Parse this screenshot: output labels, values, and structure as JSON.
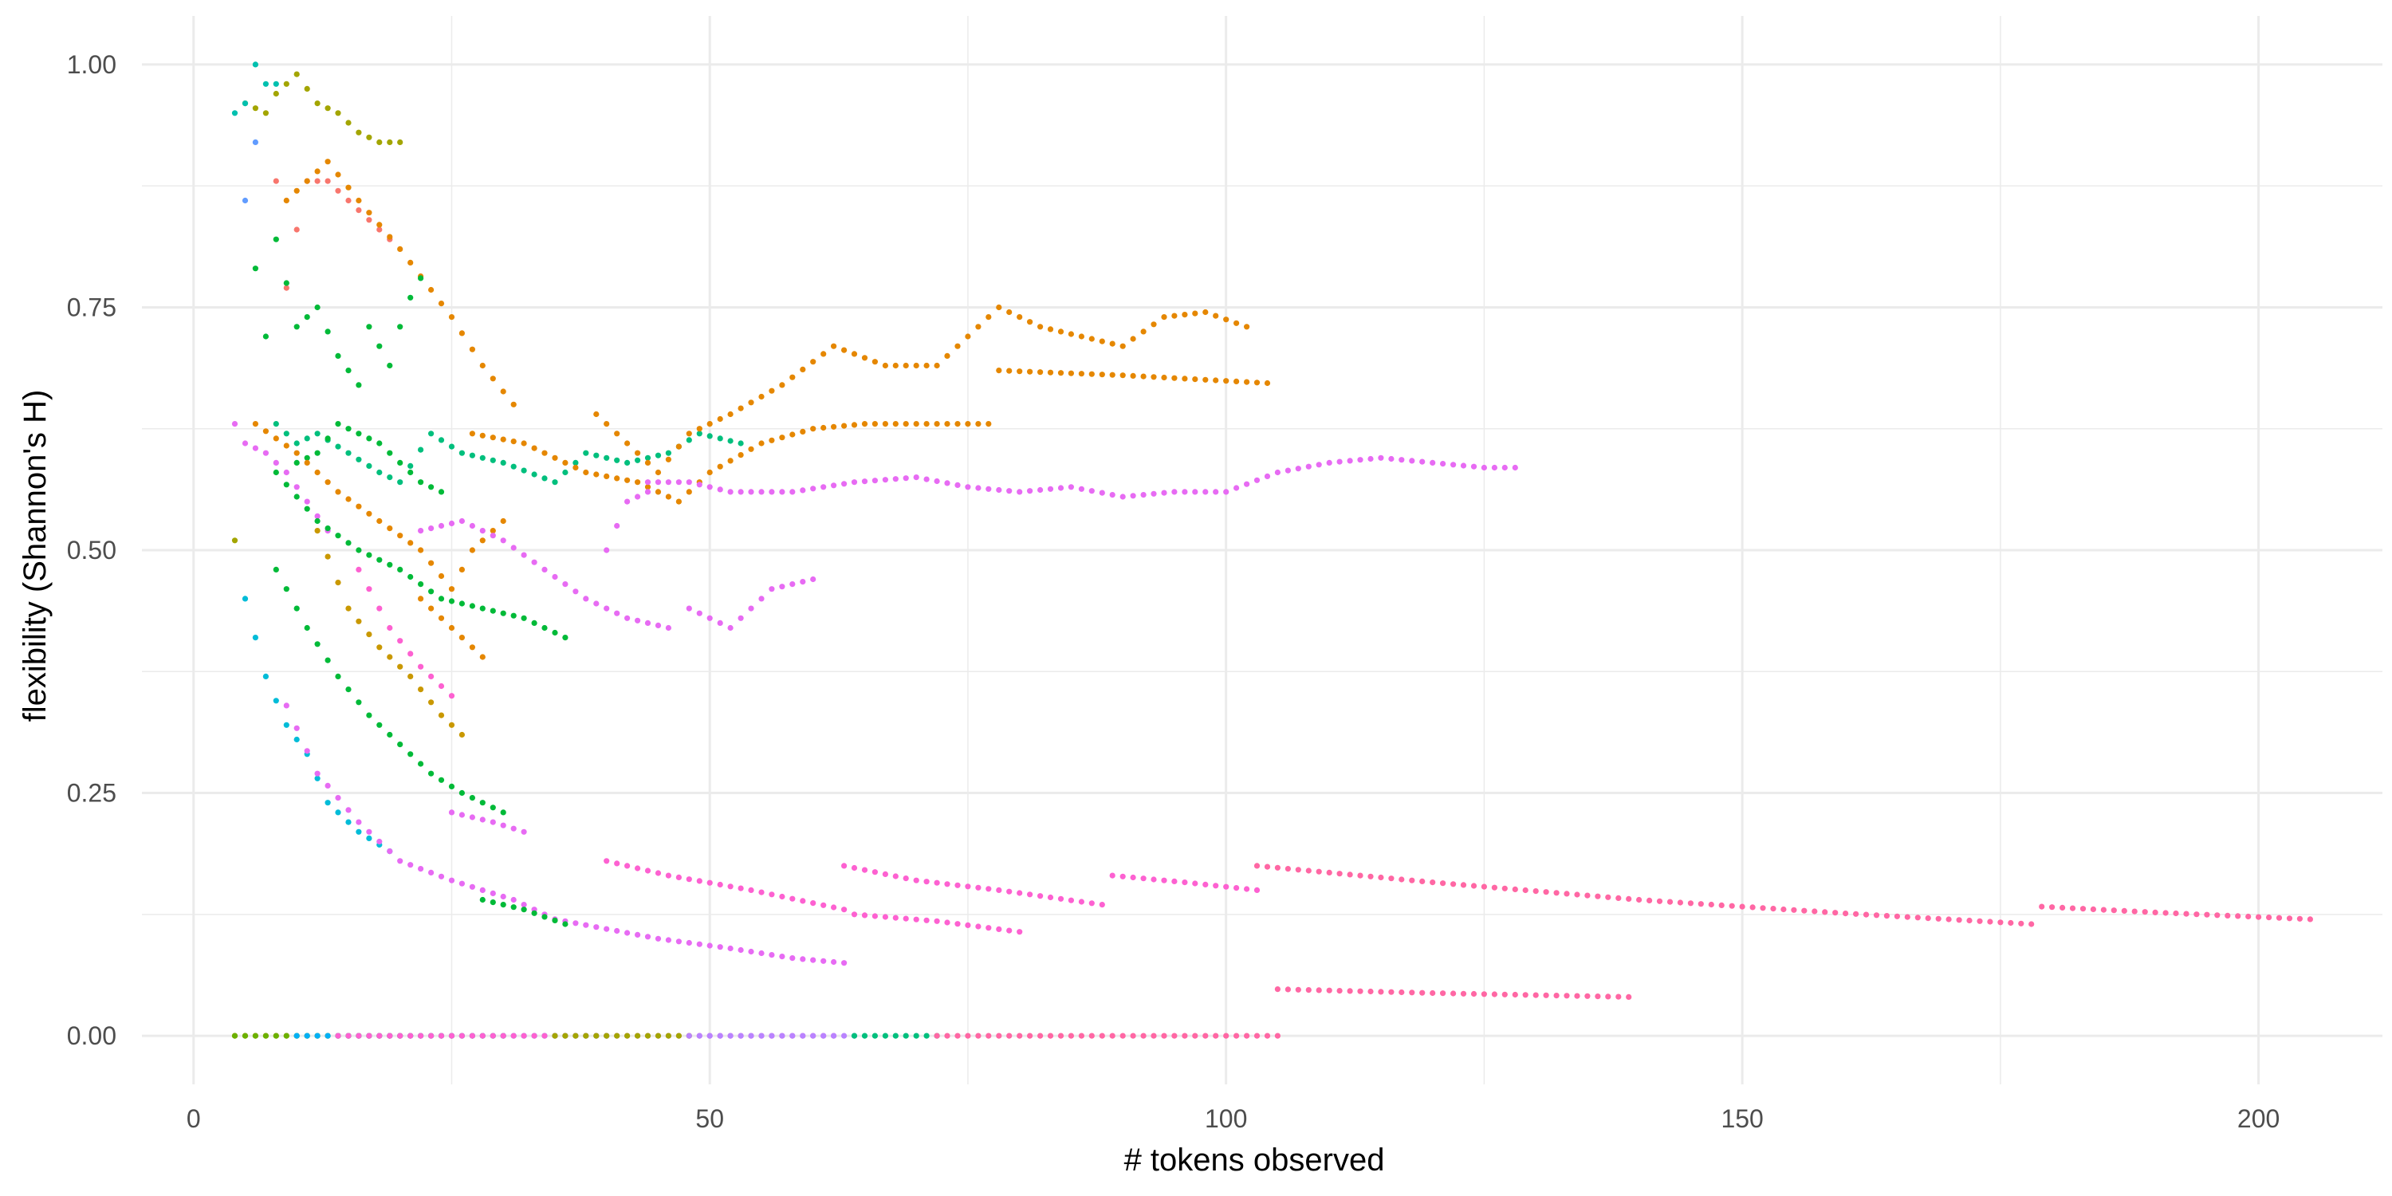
{
  "chart_data": {
    "type": "scatter",
    "title": "",
    "xlabel": "# tokens observed",
    "ylabel": "flexibility (Shannon's H)",
    "xlim": [
      -5,
      212
    ],
    "ylim": [
      -0.05,
      1.05
    ],
    "x_ticks": [
      0,
      50,
      100,
      150,
      200
    ],
    "x_tick_labels": [
      "0",
      "50",
      "100",
      "150",
      "200"
    ],
    "y_ticks": [
      0,
      0.25,
      0.5,
      0.75,
      1.0
    ],
    "y_tick_labels": [
      "0.00",
      "0.25",
      "0.50",
      "0.75",
      "1.00"
    ],
    "grid": true,
    "legend": "none",
    "palette": [
      "#F8766D",
      "#E58700",
      "#C99800",
      "#A3A500",
      "#6BB100",
      "#00BA38",
      "#00BF7D",
      "#00C0AF",
      "#00BCD8",
      "#00B0F6",
      "#619CFF",
      "#B983FF",
      "#E76BF3",
      "#FD61D1",
      "#FF67A4"
    ],
    "series": [
      {
        "color": "#E58700",
        "curves": [
          [
            4,
            0.0
          ],
          [
            20,
            0.0
          ]
        ]
      },
      {
        "color": "#6BB100",
        "curves": [
          [
            4,
            0.0
          ],
          [
            30,
            0.0
          ]
        ]
      },
      {
        "color": "#00B0F6",
        "curves": [
          [
            10,
            0.0
          ],
          [
            40,
            0.0
          ]
        ]
      },
      {
        "color": "#FD61D1",
        "curves": [
          [
            14,
            0.0
          ],
          [
            62,
            0.0
          ]
        ]
      },
      {
        "color": "#A3A500",
        "curves": [
          [
            35,
            0.0
          ],
          [
            48,
            0.0
          ]
        ]
      },
      {
        "color": "#B983FF",
        "curves": [
          [
            48,
            0.0
          ],
          [
            64,
            0.0
          ]
        ]
      },
      {
        "color": "#00BF7D",
        "curves": [
          [
            64,
            0.0
          ],
          [
            72,
            0.0
          ]
        ]
      },
      {
        "color": "#FF67A4",
        "curves": [
          [
            72,
            0.0
          ],
          [
            105,
            0.0
          ]
        ]
      },
      {
        "color": "#A3A500",
        "curves": [
          [
            4,
            0.51
          ],
          [
            5,
            0.96
          ],
          [
            7,
            0.95
          ],
          [
            8,
            0.97
          ],
          [
            10,
            0.99
          ],
          [
            12,
            0.96
          ],
          [
            14,
            0.95
          ],
          [
            16,
            0.93
          ],
          [
            18,
            0.92
          ],
          [
            20,
            0.92
          ]
        ]
      },
      {
        "color": "#00C0AF",
        "curves": [
          [
            4,
            0.95
          ],
          [
            5,
            0.96
          ],
          [
            6,
            1.0
          ],
          [
            7,
            0.98
          ],
          [
            8,
            0.98
          ]
        ]
      },
      {
        "color": "#619CFF",
        "curves": [
          [
            5,
            0.86
          ],
          [
            6,
            0.92
          ]
        ]
      },
      {
        "color": "#F8766D",
        "curves": [
          [
            8,
            0.88
          ],
          [
            9,
            0.77
          ],
          [
            10,
            0.83
          ],
          [
            11,
            0.88
          ],
          [
            13,
            0.88
          ],
          [
            15,
            0.86
          ],
          [
            17,
            0.84
          ],
          [
            19,
            0.82
          ]
        ]
      },
      {
        "color": "#E58700",
        "curves": [
          [
            9,
            0.86
          ],
          [
            13,
            0.9
          ],
          [
            16,
            0.86
          ],
          [
            20,
            0.81
          ],
          [
            25,
            0.74
          ],
          [
            28,
            0.69
          ],
          [
            31,
            0.65
          ]
        ]
      },
      {
        "color": "#00BA38",
        "curves": [
          [
            6,
            0.79
          ],
          [
            7,
            0.72
          ],
          [
            8,
            0.82
          ],
          [
            10,
            0.73
          ],
          [
            12,
            0.75
          ],
          [
            14,
            0.7
          ],
          [
            16,
            0.67
          ],
          [
            17,
            0.73
          ],
          [
            19,
            0.69
          ],
          [
            20,
            0.73
          ],
          [
            21,
            0.76
          ],
          [
            22,
            0.78
          ]
        ]
      },
      {
        "color": "#00BF7D",
        "curves": [
          [
            8,
            0.63
          ],
          [
            10,
            0.61
          ],
          [
            12,
            0.62
          ],
          [
            15,
            0.6
          ],
          [
            18,
            0.58
          ],
          [
            20,
            0.57
          ],
          [
            23,
            0.62
          ],
          [
            26,
            0.6
          ],
          [
            30,
            0.59
          ],
          [
            35,
            0.57
          ],
          [
            38,
            0.6
          ],
          [
            42,
            0.59
          ],
          [
            46,
            0.6
          ],
          [
            49,
            0.62
          ],
          [
            53,
            0.61
          ]
        ]
      },
      {
        "color": "#00BA38",
        "curves": [
          [
            10,
            0.59
          ],
          [
            12,
            0.6
          ],
          [
            14,
            0.63
          ],
          [
            16,
            0.62
          ],
          [
            18,
            0.61
          ],
          [
            20,
            0.59
          ],
          [
            22,
            0.57
          ],
          [
            24,
            0.56
          ]
        ]
      },
      {
        "color": "#E76BF3",
        "curves": [
          [
            4,
            0.63
          ],
          [
            5,
            0.61
          ],
          [
            7,
            0.6
          ],
          [
            9,
            0.58
          ],
          [
            11,
            0.55
          ],
          [
            13,
            0.52
          ]
        ]
      },
      {
        "color": "#E58700",
        "curves": [
          [
            6,
            0.63
          ],
          [
            10,
            0.6
          ],
          [
            14,
            0.56
          ],
          [
            18,
            0.53
          ],
          [
            22,
            0.5
          ],
          [
            25,
            0.46
          ],
          [
            27,
            0.5
          ],
          [
            30,
            0.53
          ]
        ]
      },
      {
        "color": "#E58700",
        "curves": [
          [
            27,
            0.62
          ],
          [
            32,
            0.61
          ],
          [
            38,
            0.58
          ],
          [
            43,
            0.57
          ],
          [
            47,
            0.55
          ],
          [
            50,
            0.58
          ],
          [
            55,
            0.61
          ],
          [
            60,
            0.625
          ],
          [
            65,
            0.63
          ],
          [
            77,
            0.63
          ]
        ]
      },
      {
        "color": "#E58700",
        "curves": [
          [
            39,
            0.64
          ],
          [
            42,
            0.61
          ],
          [
            45,
            0.58
          ],
          [
            48,
            0.62
          ],
          [
            52,
            0.64
          ],
          [
            57,
            0.67
          ],
          [
            62,
            0.71
          ],
          [
            67,
            0.69
          ],
          [
            72,
            0.69
          ],
          [
            75,
            0.72
          ],
          [
            78,
            0.75
          ],
          [
            82,
            0.73
          ],
          [
            86,
            0.72
          ],
          [
            90,
            0.71
          ],
          [
            94,
            0.74
          ],
          [
            98,
            0.745
          ],
          [
            102,
            0.73
          ]
        ]
      },
      {
        "color": "#E58700",
        "curves": [
          [
            78,
            0.685
          ],
          [
            90,
            0.68
          ],
          [
            104,
            0.672
          ]
        ]
      },
      {
        "color": "#E76BF3",
        "curves": [
          [
            44,
            0.57
          ],
          [
            48,
            0.57
          ],
          [
            52,
            0.56
          ],
          [
            58,
            0.56
          ],
          [
            64,
            0.57
          ],
          [
            70,
            0.575
          ],
          [
            75,
            0.565
          ],
          [
            80,
            0.56
          ],
          [
            85,
            0.565
          ],
          [
            90,
            0.555
          ],
          [
            95,
            0.56
          ],
          [
            100,
            0.56
          ],
          [
            105,
            0.58
          ],
          [
            110,
            0.59
          ],
          [
            115,
            0.595
          ],
          [
            120,
            0.59
          ],
          [
            125,
            0.585
          ],
          [
            128,
            0.585
          ]
        ]
      },
      {
        "color": "#E76BF3",
        "curves": [
          [
            22,
            0.52
          ],
          [
            26,
            0.53
          ],
          [
            30,
            0.51
          ],
          [
            34,
            0.48
          ],
          [
            38,
            0.45
          ],
          [
            42,
            0.43
          ],
          [
            46,
            0.42
          ]
        ]
      },
      {
        "color": "#E76BF3",
        "curves": [
          [
            48,
            0.44
          ],
          [
            52,
            0.42
          ],
          [
            56,
            0.46
          ],
          [
            60,
            0.47
          ]
        ]
      },
      {
        "color": "#E76BF3",
        "curves": [
          [
            40,
            0.5
          ],
          [
            42,
            0.55
          ],
          [
            44,
            0.56
          ]
        ]
      },
      {
        "color": "#00BA38",
        "curves": [
          [
            8,
            0.58
          ],
          [
            12,
            0.53
          ],
          [
            16,
            0.5
          ],
          [
            20,
            0.48
          ],
          [
            24,
            0.45
          ],
          [
            28,
            0.44
          ],
          [
            32,
            0.43
          ],
          [
            36,
            0.41
          ]
        ]
      },
      {
        "color": "#C99800",
        "curves": [
          [
            12,
            0.52
          ],
          [
            15,
            0.44
          ],
          [
            18,
            0.4
          ],
          [
            21,
            0.37
          ],
          [
            24,
            0.33
          ],
          [
            26,
            0.31
          ]
        ]
      },
      {
        "color": "#E58700",
        "curves": [
          [
            22,
            0.45
          ],
          [
            25,
            0.42
          ],
          [
            28,
            0.39
          ]
        ]
      },
      {
        "color": "#00BA38",
        "curves": [
          [
            8,
            0.48
          ],
          [
            11,
            0.42
          ],
          [
            14,
            0.37
          ],
          [
            17,
            0.33
          ],
          [
            20,
            0.3
          ],
          [
            23,
            0.27
          ],
          [
            26,
            0.25
          ],
          [
            30,
            0.23
          ]
        ]
      },
      {
        "color": "#FD61D1",
        "curves": [
          [
            16,
            0.48
          ],
          [
            19,
            0.42
          ],
          [
            22,
            0.38
          ],
          [
            25,
            0.35
          ]
        ]
      },
      {
        "color": "#00BCD8",
        "curves": [
          [
            5,
            0.45
          ],
          [
            6,
            0.41
          ],
          [
            7,
            0.37
          ],
          [
            9,
            0.32
          ],
          [
            11,
            0.29
          ],
          [
            13,
            0.24
          ],
          [
            16,
            0.21
          ],
          [
            19,
            0.19
          ]
        ]
      },
      {
        "color": "#E76BF3",
        "curves": [
          [
            9,
            0.34
          ],
          [
            12,
            0.27
          ],
          [
            16,
            0.22
          ],
          [
            20,
            0.18
          ],
          [
            25,
            0.16
          ],
          [
            31,
            0.14
          ],
          [
            35,
            0.12
          ],
          [
            40,
            0.11
          ],
          [
            45,
            0.1
          ],
          [
            52,
            0.09
          ],
          [
            58,
            0.08
          ],
          [
            63,
            0.075
          ]
        ]
      },
      {
        "color": "#E76BF3",
        "curves": [
          [
            25,
            0.23
          ],
          [
            29,
            0.22
          ],
          [
            32,
            0.21
          ]
        ]
      },
      {
        "color": "#00BA38",
        "curves": [
          [
            28,
            0.14
          ],
          [
            32,
            0.13
          ],
          [
            36,
            0.115
          ]
        ]
      },
      {
        "color": "#FD61D1",
        "curves": [
          [
            40,
            0.18
          ],
          [
            46,
            0.165
          ],
          [
            54,
            0.15
          ],
          [
            63,
            0.13
          ]
        ]
      },
      {
        "color": "#FD61D1",
        "curves": [
          [
            63,
            0.175
          ],
          [
            70,
            0.16
          ],
          [
            78,
            0.15
          ],
          [
            88,
            0.135
          ]
        ]
      },
      {
        "color": "#FD61D1",
        "curves": [
          [
            64,
            0.125
          ],
          [
            72,
            0.118
          ],
          [
            80,
            0.107
          ]
        ]
      },
      {
        "color": "#FD61D1",
        "curves": [
          [
            89,
            0.165
          ],
          [
            96,
            0.158
          ],
          [
            103,
            0.15
          ]
        ]
      },
      {
        "color": "#FF67A4",
        "curves": [
          [
            103,
            0.175
          ],
          [
            120,
            0.158
          ],
          [
            140,
            0.14
          ],
          [
            160,
            0.126
          ],
          [
            178,
            0.115
          ]
        ]
      },
      {
        "color": "#FF67A4",
        "curves": [
          [
            179,
            0.133
          ],
          [
            190,
            0.127
          ],
          [
            205,
            0.12
          ]
        ]
      },
      {
        "color": "#FF67A4",
        "curves": [
          [
            105,
            0.048
          ],
          [
            120,
            0.044
          ],
          [
            139,
            0.04
          ]
        ]
      }
    ]
  }
}
